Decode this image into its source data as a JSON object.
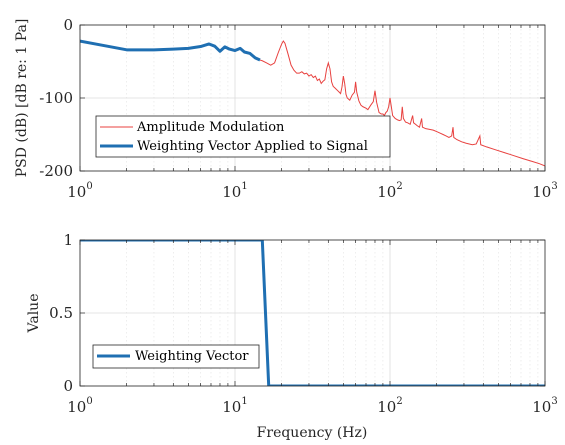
{
  "chart_data": [
    {
      "type": "line",
      "title": "",
      "xlabel": "",
      "ylabel": "PSD (dB) [dB re: 1 Pa]",
      "xscale": "log",
      "xlim": [
        1,
        1000
      ],
      "ylim": [
        -200,
        0
      ],
      "x_ticks": [
        {
          "base": "10",
          "exp": "0"
        },
        {
          "base": "10",
          "exp": "1"
        },
        {
          "base": "10",
          "exp": "2"
        },
        {
          "base": "10",
          "exp": "3"
        }
      ],
      "x_tick_values": [
        1,
        10,
        100,
        1000
      ],
      "y_ticks": [
        "-200",
        "-100",
        "0"
      ],
      "y_tick_values": [
        -200,
        -100,
        0
      ],
      "grid": true,
      "legend": {
        "position": "bottom-left"
      },
      "series": [
        {
          "name": "Amplitude Modulation",
          "color": "#e8413f",
          "style": "thin",
          "points": [
            [
              14.5,
              -48
            ],
            [
              15,
              -49
            ],
            [
              16,
              -52
            ],
            [
              17,
              -55
            ],
            [
              18,
              -52
            ],
            [
              19,
              -38
            ],
            [
              20,
              -26
            ],
            [
              20.5,
              -22
            ],
            [
              21,
              -25
            ],
            [
              22,
              -40
            ],
            [
              23,
              -55
            ],
            [
              24,
              -62
            ],
            [
              25,
              -66
            ],
            [
              26,
              -66
            ],
            [
              27,
              -64
            ],
            [
              28,
              -67
            ],
            [
              29,
              -66
            ],
            [
              30,
              -70
            ],
            [
              31,
              -68
            ],
            [
              32,
              -72
            ],
            [
              33,
              -70
            ],
            [
              34,
              -76
            ],
            [
              35,
              -74
            ],
            [
              36,
              -80
            ],
            [
              37,
              -77
            ],
            [
              38,
              -75
            ],
            [
              39,
              -60
            ],
            [
              40,
              -52
            ],
            [
              41,
              -60
            ],
            [
              42,
              -78
            ],
            [
              43,
              -84
            ],
            [
              44,
              -86
            ],
            [
              45,
              -88
            ],
            [
              46,
              -90
            ],
            [
              47,
              -92
            ],
            [
              48,
              -94
            ],
            [
              49,
              -85
            ],
            [
              50,
              -70
            ],
            [
              51,
              -80
            ],
            [
              52,
              -95
            ],
            [
              53,
              -100
            ],
            [
              55,
              -103
            ],
            [
              57,
              -96
            ],
            [
              59,
              -92
            ],
            [
              60,
              -78
            ],
            [
              61,
              -92
            ],
            [
              63,
              -104
            ],
            [
              65,
              -110
            ],
            [
              67,
              -112
            ],
            [
              70,
              -114
            ],
            [
              72,
              -116
            ],
            [
              75,
              -110
            ],
            [
              78,
              -105
            ],
            [
              80,
              -90
            ],
            [
              82,
              -106
            ],
            [
              85,
              -120
            ],
            [
              88,
              -122
            ],
            [
              90,
              -122
            ],
            [
              92,
              -124
            ],
            [
              94,
              -120
            ],
            [
              96,
              -118
            ],
            [
              98,
              -112
            ],
            [
              100,
              -100
            ],
            [
              102,
              -112
            ],
            [
              104,
              -124
            ],
            [
              108,
              -128
            ],
            [
              112,
              -130
            ],
            [
              115,
              -131
            ],
            [
              118,
              -130
            ],
            [
              120,
              -112
            ],
            [
              122,
              -128
            ],
            [
              126,
              -133
            ],
            [
              130,
              -134
            ],
            [
              135,
              -136
            ],
            [
              140,
              -124
            ],
            [
              142,
              -134
            ],
            [
              146,
              -136
            ],
            [
              150,
              -138
            ],
            [
              155,
              -140
            ],
            [
              160,
              -128
            ],
            [
              162,
              -140
            ],
            [
              170,
              -142
            ],
            [
              180,
              -143
            ],
            [
              190,
              -144
            ],
            [
              200,
              -146
            ],
            [
              210,
              -148
            ],
            [
              220,
              -150
            ],
            [
              230,
              -152
            ],
            [
              240,
              -154
            ],
            [
              250,
              -152
            ],
            [
              255,
              -140
            ],
            [
              258,
              -154
            ],
            [
              270,
              -157
            ],
            [
              290,
              -160
            ],
            [
              310,
              -162
            ],
            [
              340,
              -164
            ],
            [
              360,
              -163
            ],
            [
              380,
              -152
            ],
            [
              385,
              -164
            ],
            [
              420,
              -167
            ],
            [
              480,
              -171
            ],
            [
              550,
              -175
            ],
            [
              630,
              -179
            ],
            [
              720,
              -183
            ],
            [
              830,
              -187
            ],
            [
              920,
              -190
            ],
            [
              1000,
              -193
            ]
          ]
        },
        {
          "name": "Weighting Vector Applied to Signal",
          "color": "#1f6fb2",
          "style": "thick",
          "points": [
            [
              1,
              -22
            ],
            [
              1.5,
              -29
            ],
            [
              2,
              -34
            ],
            [
              3,
              -34
            ],
            [
              4,
              -33
            ],
            [
              5,
              -32
            ],
            [
              6,
              -29.5
            ],
            [
              6.8,
              -26
            ],
            [
              7.4,
              -29
            ],
            [
              8,
              -36
            ],
            [
              8.6,
              -30
            ],
            [
              9.2,
              -33
            ],
            [
              10,
              -35
            ],
            [
              10.8,
              -32
            ],
            [
              11.5,
              -37
            ],
            [
              12.5,
              -39
            ],
            [
              13.5,
              -45
            ],
            [
              14.5,
              -48
            ]
          ]
        }
      ]
    },
    {
      "type": "line",
      "title": "",
      "xlabel": "Frequency (Hz)",
      "ylabel": "Value",
      "xscale": "log",
      "xlim": [
        1,
        1000
      ],
      "ylim": [
        0,
        1
      ],
      "x_ticks": [
        {
          "base": "10",
          "exp": "0"
        },
        {
          "base": "10",
          "exp": "1"
        },
        {
          "base": "10",
          "exp": "2"
        },
        {
          "base": "10",
          "exp": "3"
        }
      ],
      "x_tick_values": [
        1,
        10,
        100,
        1000
      ],
      "y_ticks": [
        "0",
        "0.5",
        "1"
      ],
      "y_tick_values": [
        0,
        0.5,
        1
      ],
      "grid": true,
      "legend": {
        "position": "bottom-left"
      },
      "series": [
        {
          "name": "Weighting Vector",
          "color": "#1f6fb2",
          "style": "thick",
          "points": [
            [
              1,
              1
            ],
            [
              15,
              1
            ],
            [
              16.5,
              0
            ],
            [
              1000,
              0
            ]
          ]
        }
      ]
    }
  ]
}
